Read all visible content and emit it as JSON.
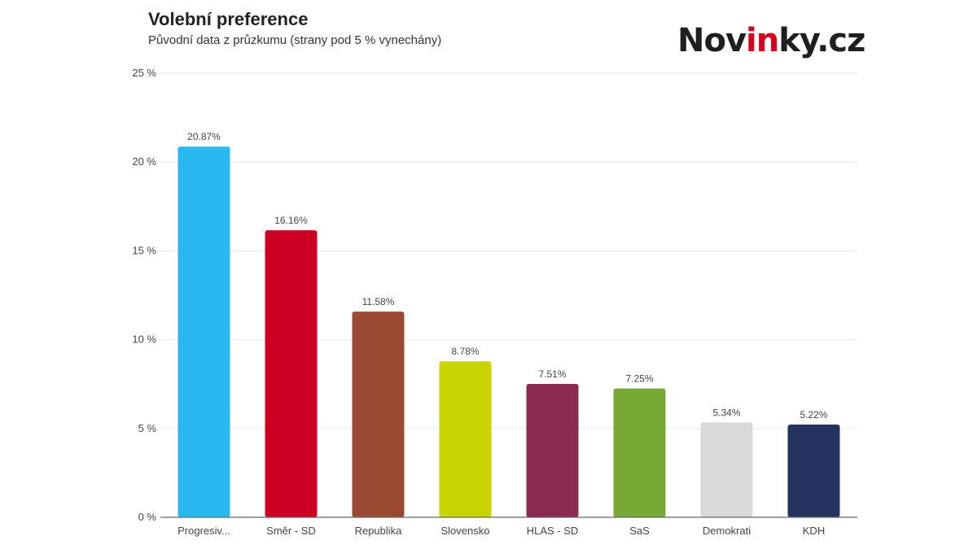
{
  "chart_data": {
    "type": "bar",
    "title": "Volební preference",
    "subtitle": "Původní data z průzkumu (strany pod 5 % vynechány)",
    "categories": [
      "Progresiv...",
      "Směr - SD",
      "Republika",
      "Slovensko",
      "HLAS - SD",
      "SaS",
      "Demokrati",
      "KDH"
    ],
    "values": [
      20.87,
      16.16,
      11.58,
      8.78,
      7.51,
      7.25,
      5.34,
      5.22
    ],
    "data_labels": [
      "20.87%",
      "16.16%",
      "11.58%",
      "8.78%",
      "7.51%",
      "7.25%",
      "5.34%",
      "5.22%"
    ],
    "colors": [
      "#29b8f0",
      "#cc0022",
      "#9a4a32",
      "#c8d400",
      "#8a2a50",
      "#76a833",
      "#d9d9d9",
      "#24325f"
    ],
    "yticks": [
      0,
      5,
      10,
      15,
      20,
      25
    ],
    "ytick_labels": [
      "0 %",
      "5 %",
      "10 %",
      "15 %",
      "20 %",
      "25 %"
    ],
    "ylim": [
      0,
      25
    ],
    "xlabel": "",
    "ylabel": "",
    "grid": true
  },
  "logo": {
    "part1": "Nov",
    "accent": "in",
    "part2": "ky.cz",
    "accent_color": "#d4001d"
  }
}
